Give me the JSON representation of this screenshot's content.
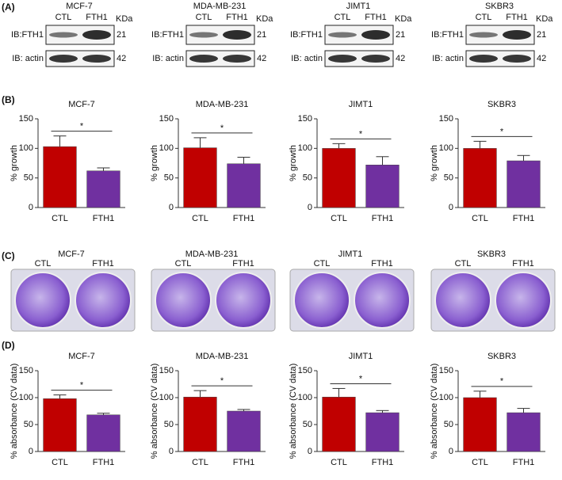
{
  "panel_labels": [
    "(A)",
    "(B)",
    "(C)",
    "(D)"
  ],
  "blots": [
    {
      "title": "MCF-7",
      "lanes": [
        "CTL",
        "FTH1"
      ],
      "unit": "KDa",
      "rows": [
        {
          "label": "IB:FTH1",
          "kda": 21
        },
        {
          "label": "IB: actin",
          "kda": 42
        }
      ]
    },
    {
      "title": "MDA-MB-231",
      "lanes": [
        "CTL",
        "FTH1"
      ],
      "unit": "KDa",
      "rows": [
        {
          "label": "IB:FTH1",
          "kda": 21
        },
        {
          "label": "IB: actin",
          "kda": 42
        }
      ]
    },
    {
      "title": "JIMT1",
      "lanes": [
        "CTL",
        "FTH1"
      ],
      "unit": "KDa",
      "rows": [
        {
          "label": "IB:FTH1",
          "kda": 21
        },
        {
          "label": "IB: actin",
          "kda": 42
        }
      ]
    },
    {
      "title": "SKBR3",
      "lanes": [
        "CTL",
        "FTH1"
      ],
      "unit": "KDa",
      "rows": [
        {
          "label": "IB:FTH1",
          "kda": 21
        },
        {
          "label": "IB: actin",
          "kda": 42
        }
      ]
    }
  ],
  "plates": [
    {
      "title": "MCF-7",
      "wells": [
        "CTL",
        "FTH1"
      ]
    },
    {
      "title": "MDA-MB-231",
      "wells": [
        "CTL",
        "FTH1"
      ]
    },
    {
      "title": "JIMT1",
      "wells": [
        "CTL",
        "FTH1"
      ]
    },
    {
      "title": "SKBR3",
      "wells": [
        "CTL",
        "FTH1"
      ]
    }
  ],
  "chart_data": [
    {
      "type": "bar",
      "title": "MCF-7",
      "ylabel": "% growth",
      "categories": [
        "CTL",
        "FTH1"
      ],
      "values": [
        103,
        62
      ],
      "errors": [
        18,
        5
      ],
      "colors": [
        "#c00000",
        "#7030a0"
      ],
      "ylim": [
        0,
        150
      ],
      "yticks": [
        0,
        50,
        100,
        150
      ],
      "annotation": "*"
    },
    {
      "type": "bar",
      "title": "MDA-MB-231",
      "ylabel": "% growth",
      "categories": [
        "CTL",
        "FTH1"
      ],
      "values": [
        101,
        74
      ],
      "errors": [
        17,
        11
      ],
      "colors": [
        "#c00000",
        "#7030a0"
      ],
      "ylim": [
        0,
        150
      ],
      "yticks": [
        0,
        50,
        100,
        150
      ],
      "annotation": "*"
    },
    {
      "type": "bar",
      "title": "JIMT1",
      "ylabel": "% growth",
      "categories": [
        "CTL",
        "FTH1"
      ],
      "values": [
        100,
        72
      ],
      "errors": [
        8,
        14
      ],
      "colors": [
        "#c00000",
        "#7030a0"
      ],
      "ylim": [
        0,
        150
      ],
      "yticks": [
        0,
        50,
        100,
        150
      ],
      "annotation": "*"
    },
    {
      "type": "bar",
      "title": "SKBR3",
      "ylabel": "% growth",
      "categories": [
        "CTL",
        "FTH1"
      ],
      "values": [
        100,
        79
      ],
      "errors": [
        12,
        9
      ],
      "colors": [
        "#c00000",
        "#7030a0"
      ],
      "ylim": [
        0,
        150
      ],
      "yticks": [
        0,
        50,
        100,
        150
      ],
      "annotation": "*"
    },
    {
      "type": "bar",
      "title": "MCF-7",
      "ylabel": "% absorbance (CV data)",
      "categories": [
        "CTL",
        "FTH1"
      ],
      "values": [
        98,
        68
      ],
      "errors": [
        7,
        3
      ],
      "colors": [
        "#c00000",
        "#7030a0"
      ],
      "ylim": [
        0,
        150
      ],
      "yticks": [
        0,
        50,
        100,
        150
      ],
      "annotation": "*"
    },
    {
      "type": "bar",
      "title": "MDA-MB-231",
      "ylabel": "% absorbance (CV data)",
      "categories": [
        "CTL",
        "FTH1"
      ],
      "values": [
        101,
        75
      ],
      "errors": [
        12,
        3
      ],
      "colors": [
        "#c00000",
        "#7030a0"
      ],
      "ylim": [
        0,
        150
      ],
      "yticks": [
        0,
        50,
        100,
        150
      ],
      "annotation": "*"
    },
    {
      "type": "bar",
      "title": "JIMT1",
      "ylabel": "% absorbance (CV data)",
      "categories": [
        "CTL",
        "FTH1"
      ],
      "values": [
        101,
        72
      ],
      "errors": [
        16,
        4
      ],
      "colors": [
        "#c00000",
        "#7030a0"
      ],
      "ylim": [
        0,
        150
      ],
      "yticks": [
        0,
        50,
        100,
        150
      ],
      "annotation": "*"
    },
    {
      "type": "bar",
      "title": "SKBR3",
      "ylabel": "% absorbance (CV data)",
      "categories": [
        "CTL",
        "FTH1"
      ],
      "values": [
        100,
        72
      ],
      "errors": [
        12,
        8
      ],
      "colors": [
        "#c00000",
        "#7030a0"
      ],
      "ylim": [
        0,
        150
      ],
      "yticks": [
        0,
        50,
        100,
        150
      ],
      "annotation": "*"
    }
  ]
}
